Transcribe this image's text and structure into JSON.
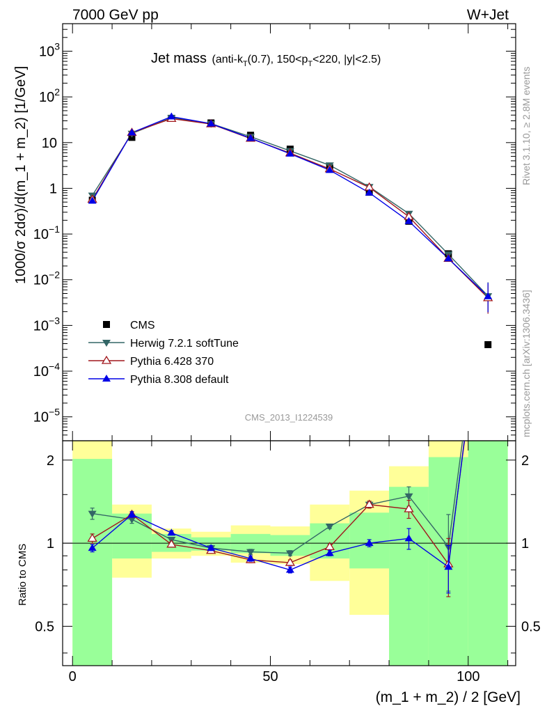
{
  "header": {
    "left": "7000 GeV pp",
    "right": "W+Jet"
  },
  "plot_title": {
    "main": "Jet mass",
    "detail_1": "(anti-k",
    "detail_2": "T",
    "detail_3": "(0.7), 150<p",
    "detail_4": "T",
    "detail_5": "<220, |y|<2.5)"
  },
  "side_text": {
    "rivet": "Rivet 3.1.10, ≥ 2.8M events",
    "mcplots": "mcplots.cern.ch [arXiv:1306.3436]"
  },
  "watermark": "CMS_2013_I1224539",
  "main_ylabel": "1000/σ 2dσ)/d(m_1 + m_2) [1/GeV]",
  "ratio_ylabel": "Ratio to CMS",
  "xlabel": "(m_1 + m_2) / 2 [GeV]",
  "main_yticks": [
    {
      "value": 1000,
      "base": "10",
      "exp": "3"
    },
    {
      "value": 100,
      "base": "10",
      "exp": "2"
    },
    {
      "value": 10,
      "base": "10",
      "exp": ""
    },
    {
      "value": 1,
      "base": "1",
      "exp": ""
    },
    {
      "value": 0.1,
      "base": "10",
      "exp": "−1"
    },
    {
      "value": 0.01,
      "base": "10",
      "exp": "−2"
    },
    {
      "value": 0.001,
      "base": "10",
      "exp": "−3"
    },
    {
      "value": 0.0001,
      "base": "10",
      "exp": "−4"
    },
    {
      "value": 1e-05,
      "base": "10",
      "exp": "−5"
    }
  ],
  "ratio_yticks": [
    "0.5",
    "1",
    "2"
  ],
  "xticks": [
    "0",
    "50",
    "100"
  ],
  "colors": {
    "cms": "#000000",
    "herwig": "#336666",
    "pythia6": "#a0161c",
    "pythia8": "#0000e6",
    "band_inner": "#99ff99",
    "band_outer": "#ffff99"
  },
  "chart_data": {
    "type": "scatter",
    "x_scale": "linear",
    "y_scale": "log",
    "xlim": [
      -2.5,
      112
    ],
    "ylim": [
      3e-06,
      4000
    ],
    "ratio_ylim": [
      0.36,
      2.35
    ],
    "ratio_scale": "log",
    "bin_edges": [
      0,
      10,
      20,
      30,
      40,
      50,
      60,
      70,
      80,
      90,
      100,
      110
    ],
    "x": [
      5,
      15,
      25,
      35,
      45,
      55,
      65,
      75,
      85,
      95,
      105
    ],
    "legend": {
      "position": "lower-left",
      "entries": [
        "CMS",
        "Herwig 7.2.1 softTune",
        "Pythia 6.428 370",
        "Pythia 8.308 default"
      ]
    },
    "series": [
      {
        "name": "CMS",
        "marker": "square",
        "values": [
          0.55,
          13.0,
          34.0,
          27.0,
          14.5,
          7.2,
          2.8,
          0.82,
          0.19,
          0.037,
          0.00038
        ]
      },
      {
        "name": "Herwig 7.2.1 softTune",
        "marker": "triangle-down",
        "values": [
          0.7,
          15.8,
          35.0,
          26.0,
          13.5,
          6.6,
          3.2,
          1.08,
          0.28,
          0.036,
          0.0044
        ],
        "ratio": [
          1.28,
          1.22,
          1.03,
          0.96,
          0.93,
          0.92,
          1.15,
          1.38,
          1.48,
          0.97,
          11.6
        ],
        "ratio_err": [
          0.06,
          0.04,
          0.02,
          0.02,
          0.02,
          0.02,
          0.02,
          0.04,
          0.12,
          0.3,
          5.0
        ]
      },
      {
        "name": "Pythia 6.428 370",
        "marker": "triangle-up-open",
        "values": [
          0.57,
          16.5,
          33.5,
          25.5,
          12.3,
          5.9,
          2.65,
          1.05,
          0.24,
          0.029,
          0.004
        ],
        "ratio": [
          1.04,
          1.27,
          0.99,
          0.94,
          0.87,
          0.85,
          0.97,
          1.38,
          1.33,
          0.84,
          10.5
        ],
        "ratio_err": [
          0.04,
          0.03,
          0.02,
          0.02,
          0.02,
          0.02,
          0.02,
          0.04,
          0.1,
          0.2,
          5.0
        ]
      },
      {
        "name": "Pythia 8.308 default",
        "marker": "triangle-up",
        "values": [
          0.53,
          16.5,
          37.0,
          26.0,
          12.5,
          5.7,
          2.5,
          0.8,
          0.19,
          0.029,
          0.0043
        ],
        "ratio": [
          0.96,
          1.27,
          1.09,
          0.96,
          0.88,
          0.8,
          0.92,
          1.0,
          1.04,
          0.82,
          11.3
        ],
        "ratio_err": [
          0.03,
          0.03,
          0.02,
          0.02,
          0.02,
          0.02,
          0.02,
          0.03,
          0.09,
          0.16,
          5.0
        ]
      }
    ],
    "ratio_band_inner": [
      [
        0.36,
        2.02
      ],
      [
        0.88,
        1.28
      ],
      [
        0.93,
        1.08
      ],
      [
        0.94,
        1.05
      ],
      [
        0.92,
        1.08
      ],
      [
        0.9,
        1.07
      ],
      [
        0.88,
        1.18
      ],
      [
        0.81,
        1.29
      ],
      [
        0.36,
        1.6
      ],
      [
        0.36,
        2.05
      ],
      [
        0.36,
        2.35
      ]
    ],
    "ratio_band_outer": [
      [
        0.36,
        2.35
      ],
      [
        0.75,
        1.38
      ],
      [
        0.88,
        1.13
      ],
      [
        0.9,
        1.1
      ],
      [
        0.85,
        1.16
      ],
      [
        0.84,
        1.15
      ],
      [
        0.73,
        1.38
      ],
      [
        0.55,
        1.55
      ],
      [
        0.36,
        1.9
      ],
      [
        0.36,
        2.35
      ],
      [
        0.36,
        2.35
      ]
    ]
  }
}
